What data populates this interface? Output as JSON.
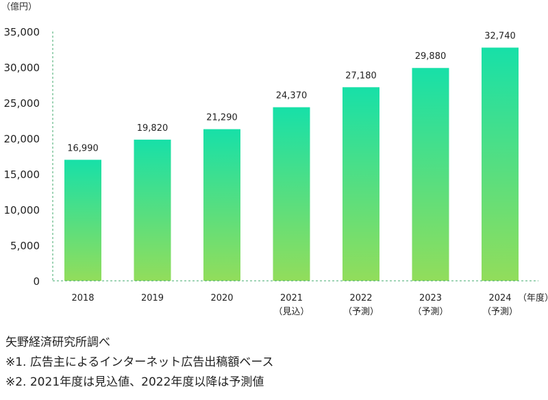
{
  "chart_data": {
    "type": "bar",
    "unit_label": "（億円）",
    "categories": [
      "2018",
      "2019",
      "2020",
      "2021",
      "2022",
      "2023",
      "2024"
    ],
    "category_sublabels": [
      "",
      "",
      "",
      "（見込）",
      "（予測）",
      "（予測）",
      "（予測）"
    ],
    "values": [
      16990,
      19820,
      21290,
      24370,
      27180,
      29880,
      32740
    ],
    "value_labels": [
      "16,990",
      "19,820",
      "21,290",
      "24,370",
      "27,180",
      "29,880",
      "32,740"
    ],
    "ylim": [
      0,
      35000
    ],
    "yticks": [
      0,
      5000,
      10000,
      15000,
      20000,
      25000,
      30000,
      35000
    ],
    "ytick_labels": [
      "0",
      "5,000",
      "10,000",
      "15,000",
      "20,000",
      "25,000",
      "30,000",
      "35,000"
    ],
    "xlabel": "（年度）",
    "grid": false,
    "colors": {
      "bar_top": "#17e0a8",
      "bar_bottom": "#92dd5b",
      "axis": "#3fa86b"
    }
  },
  "notes": {
    "source": "矢野経済研究所調べ",
    "note1": "※1. 広告主によるインターネット広告出稿額ベース",
    "note2": "※2. 2021年度は見込値、2022年度以降は予測値"
  }
}
